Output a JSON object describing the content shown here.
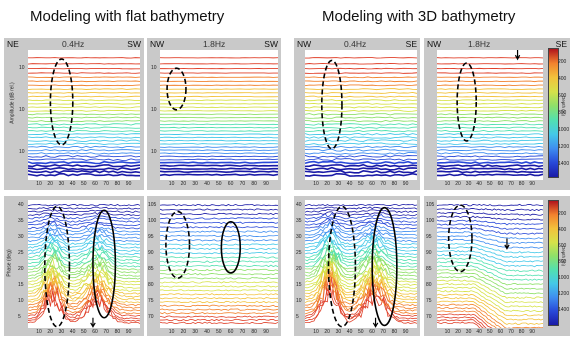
{
  "titles": {
    "left": "Modeling with flat bathymetry",
    "right": "Modeling with 3D bathymetry"
  },
  "panels": {
    "p1": {
      "left_corner": "NE",
      "right_corner": "",
      "freq": "0.4Hz"
    },
    "p2": {
      "left_corner": "NW",
      "right_corner": "SW",
      "freq": "1.8Hz"
    },
    "p3": {
      "left_corner": "NW",
      "right_corner": "",
      "freq": "0.4Hz"
    },
    "p4": {
      "left_corner": "NW",
      "right_corner": "SE",
      "freq": "1.8Hz"
    }
  },
  "left_corner_p1_sw": "SW",
  "corner_p3_se": "SE",
  "axis_labels": {
    "amplitude": "Amplitude (dB rel.)",
    "phase": "Phase (deg)",
    "depth": "Depth (m)"
  },
  "x_ticks": [
    "10",
    "20",
    "30",
    "40",
    "50",
    "60",
    "70",
    "80",
    "90"
  ],
  "y_ticks_phase_left": [
    "40",
    "35",
    "30",
    "25",
    "20",
    "15",
    "10",
    "5"
  ],
  "y_ticks_phase_right": [
    "105",
    "100",
    "95",
    "90",
    "85",
    "80",
    "75",
    "70"
  ],
  "y_ticks_amp": [
    "10",
    "10",
    "10"
  ],
  "colorbar_ticks": [
    "200",
    "400",
    "600",
    "800",
    "1000",
    "1200",
    "1400"
  ],
  "colors": {
    "spectrum": [
      "#1a1aa6",
      "#2848d8",
      "#3f8df0",
      "#44c8e8",
      "#52e0b0",
      "#8ee06a",
      "#d6e24a",
      "#f2c23c",
      "#f2822e",
      "#e0402a",
      "#b0141c"
    ]
  }
}
